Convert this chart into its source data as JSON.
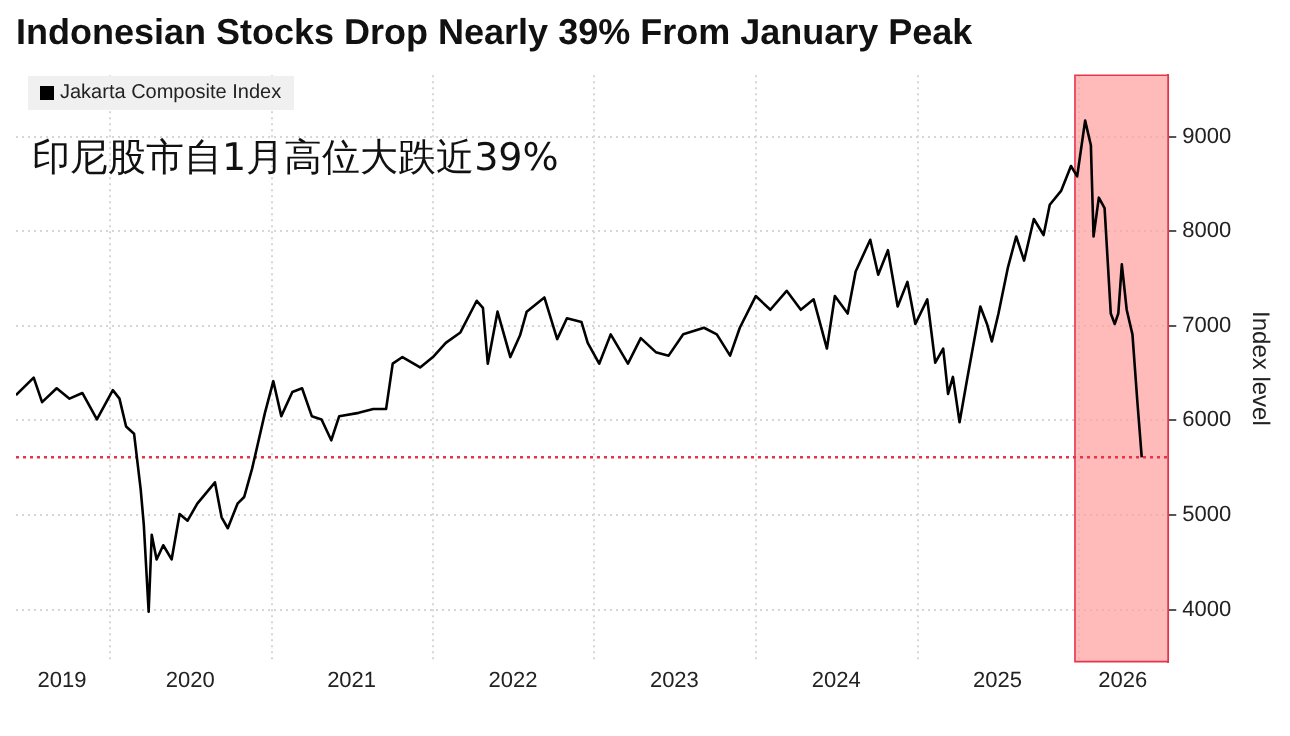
{
  "chart_data": {
    "type": "line",
    "title": "Indonesian Stocks Drop Nearly 39% From January Peak",
    "subtitle": "印尼股市自1月高位大跌近39%",
    "ylabel": "Index level",
    "x": [
      "2019-06-03",
      "2019-07-13",
      "2019-08-01",
      "2019-09-03",
      "2019-10-02",
      "2019-10-31",
      "2019-12-03",
      "2020-01-08",
      "2020-01-23",
      "2020-02-07",
      "2020-02-25",
      "2020-03-11",
      "2020-03-18",
      "2020-03-29",
      "2020-04-05",
      "2020-04-16",
      "2020-05-01",
      "2020-05-20",
      "2020-06-07",
      "2020-06-25",
      "2020-07-17",
      "2020-08-26",
      "2020-09-10",
      "2020-09-24",
      "2020-10-16",
      "2020-10-31",
      "2020-11-18",
      "2020-12-17",
      "2021-01-05",
      "2021-01-23",
      "2021-02-17",
      "2021-03-11",
      "2021-04-02",
      "2021-04-24",
      "2021-05-16",
      "2021-06-03",
      "2021-07-17",
      "2021-08-19",
      "2021-09-17",
      "2021-10-02",
      "2021-10-24",
      "2021-12-03",
      "2022-01-01",
      "2022-01-30",
      "2022-03-04",
      "2022-04-10",
      "2022-04-24",
      "2022-05-05",
      "2022-05-27",
      "2022-06-25",
      "2022-07-17",
      "2022-08-01",
      "2022-09-10",
      "2022-10-09",
      "2022-10-31",
      "2022-12-03",
      "2022-12-17",
      "2023-01-12",
      "2023-02-07",
      "2023-03-18",
      "2023-04-16",
      "2023-05-20",
      "2023-06-18",
      "2023-07-21",
      "2023-09-06",
      "2023-10-05",
      "2023-11-04",
      "2023-11-26",
      "2024-01-01",
      "2024-02-03",
      "2024-03-11",
      "2024-04-12",
      "2024-05-11",
      "2024-06-10",
      "2024-06-28",
      "2024-07-27",
      "2024-08-14",
      "2024-09-16",
      "2024-10-04",
      "2024-10-26",
      "2024-11-17",
      "2024-12-09",
      "2024-12-27",
      "2025-01-23",
      "2025-02-10",
      "2025-02-28",
      "2025-03-11",
      "2025-03-22",
      "2025-04-06",
      "2025-04-24",
      "2025-05-23",
      "2025-06-07",
      "2025-06-18",
      "2025-07-03",
      "2025-07-24",
      "2025-08-12",
      "2025-08-30",
      "2025-09-21",
      "2025-10-13",
      "2025-10-27",
      "2025-11-22",
      "2025-12-14",
      "2025-12-28",
      "2026-01-15",
      "2026-01-28",
      "2026-02-03",
      "2026-02-15",
      "2026-02-28",
      "2026-03-14",
      "2026-03-23",
      "2026-03-31",
      "2026-04-08",
      "2026-04-19",
      "2026-05-02",
      "2026-05-13",
      "2026-05-23"
    ],
    "series": [
      {
        "name": "Jakarta Composite Index",
        "color": "#000000",
        "values": [
          6267,
          6452,
          6193,
          6340,
          6230,
          6290,
          6010,
          6320,
          6230,
          5935,
          5860,
          5270,
          4900,
          3978,
          4790,
          4530,
          4680,
          4530,
          5010,
          4940,
          5120,
          5345,
          4975,
          4860,
          5120,
          5190,
          5490,
          6080,
          6415,
          6045,
          6300,
          6340,
          6045,
          6010,
          5790,
          6045,
          6080,
          6120,
          6120,
          6600,
          6670,
          6560,
          6670,
          6820,
          6930,
          7265,
          7190,
          6600,
          7150,
          6670,
          6900,
          7150,
          7300,
          6860,
          7080,
          7040,
          6820,
          6600,
          6910,
          6600,
          6870,
          6722,
          6685,
          6910,
          6980,
          6910,
          6685,
          6980,
          7315,
          7170,
          7370,
          7170,
          7280,
          6760,
          7315,
          7130,
          7575,
          7910,
          7540,
          7800,
          7205,
          7465,
          7020,
          7280,
          6610,
          6760,
          6280,
          6460,
          5980,
          6460,
          7205,
          7020,
          6835,
          7130,
          7610,
          7945,
          7690,
          8130,
          7960,
          8280,
          8430,
          8690,
          8580,
          9170,
          8910,
          7945,
          8355,
          8245,
          7130,
          7020,
          7130,
          7650,
          7170,
          6910,
          6205,
          5610
        ]
      }
    ],
    "xlim": [
      "2019-06-03",
      "2026-07-22"
    ],
    "xticks": [
      {
        "value": "2019-09-15",
        "label": "2019"
      },
      {
        "value": "2020-01-01",
        "label": null
      },
      {
        "value": "2020-07-01",
        "label": "2020"
      },
      {
        "value": "2021-01-01",
        "label": null
      },
      {
        "value": "2021-07-01",
        "label": "2021"
      },
      {
        "value": "2022-01-01",
        "label": null
      },
      {
        "value": "2022-07-01",
        "label": "2022"
      },
      {
        "value": "2023-01-01",
        "label": null
      },
      {
        "value": "2023-07-01",
        "label": "2023"
      },
      {
        "value": "2024-01-01",
        "label": null
      },
      {
        "value": "2024-07-01",
        "label": "2024"
      },
      {
        "value": "2025-01-01",
        "label": null
      },
      {
        "value": "2025-07-01",
        "label": "2025"
      },
      {
        "value": "2026-01-01",
        "label": null
      },
      {
        "value": "2026-04-10",
        "label": "2026"
      }
    ],
    "ylim": [
      3450,
      9650
    ],
    "yticks": [
      4000,
      5000,
      6000,
      7000,
      8000,
      9000
    ],
    "ref_lines": [
      {
        "axis": "y",
        "value": 5610,
        "color": "#e8344a",
        "line_style": "dotted"
      }
    ],
    "bands": [
      {
        "axis": "x",
        "from": "2025-12-23",
        "to": "2026-07-22",
        "color": "#ff9c9c"
      }
    ],
    "grid": true,
    "legend": "top left",
    "marker": "none",
    "line_style": "solid"
  }
}
